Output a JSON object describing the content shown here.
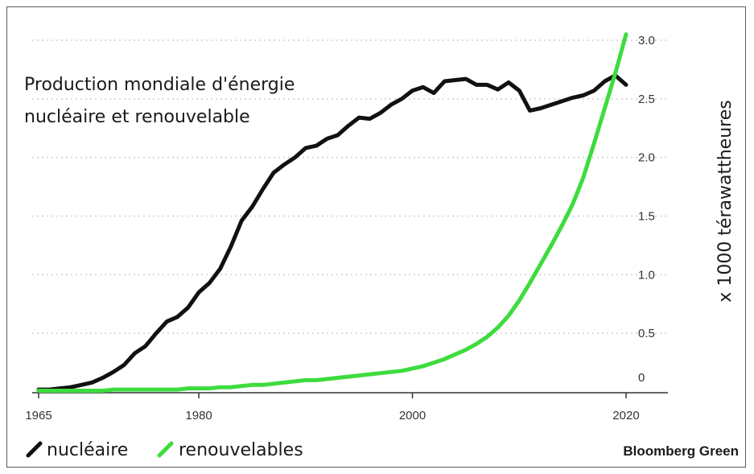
{
  "chart_data": {
    "type": "line",
    "title_lines": [
      "Production mondiale d'énergie",
      "nucléaire et renouvelable"
    ],
    "xlabel": "",
    "ylabel": "x 1000 térawattheures",
    "xlim": [
      1965,
      2020
    ],
    "ylim": [
      0,
      3.0
    ],
    "x_ticks": [
      "1965",
      "1980",
      "2000",
      "2020"
    ],
    "y_ticks": [
      "3.0",
      "2.5",
      "2.0",
      "1.5",
      "1.0",
      "0.5",
      "0"
    ],
    "grid": "horizontal dotted",
    "legend_placement": "bottom-left",
    "source": "Bloomberg Green",
    "colors": {
      "nucleaire": "#111111",
      "renouvelables": "#3ddc3d",
      "grid": "#cfcfcf",
      "axis": "#333333"
    },
    "x": [
      1965,
      1966,
      1967,
      1968,
      1969,
      1970,
      1971,
      1972,
      1973,
      1974,
      1975,
      1976,
      1977,
      1978,
      1979,
      1980,
      1981,
      1982,
      1983,
      1984,
      1985,
      1986,
      1987,
      1988,
      1989,
      1990,
      1991,
      1992,
      1993,
      1994,
      1995,
      1996,
      1997,
      1998,
      1999,
      2000,
      2001,
      2002,
      2003,
      2004,
      2005,
      2006,
      2007,
      2008,
      2009,
      2010,
      2011,
      2012,
      2013,
      2014,
      2015,
      2016,
      2017,
      2018,
      2019,
      2020
    ],
    "series": [
      {
        "name": "nucléaire",
        "values": [
          0.02,
          0.02,
          0.03,
          0.04,
          0.06,
          0.08,
          0.12,
          0.17,
          0.23,
          0.33,
          0.39,
          0.5,
          0.6,
          0.64,
          0.72,
          0.85,
          0.93,
          1.05,
          1.24,
          1.46,
          1.58,
          1.73,
          1.87,
          1.94,
          2.0,
          2.08,
          2.1,
          2.16,
          2.19,
          2.27,
          2.34,
          2.33,
          2.38,
          2.45,
          2.5,
          2.57,
          2.6,
          2.55,
          2.65,
          2.66,
          2.67,
          2.62,
          2.62,
          2.58,
          2.64,
          2.57,
          2.4,
          2.42,
          2.45,
          2.48,
          2.51,
          2.53,
          2.57,
          2.65,
          2.7,
          2.62
        ]
      },
      {
        "name": "renouvelables",
        "values": [
          0.01,
          0.01,
          0.01,
          0.01,
          0.01,
          0.01,
          0.01,
          0.02,
          0.02,
          0.02,
          0.02,
          0.02,
          0.02,
          0.02,
          0.03,
          0.03,
          0.03,
          0.04,
          0.04,
          0.05,
          0.06,
          0.06,
          0.07,
          0.08,
          0.09,
          0.1,
          0.1,
          0.11,
          0.12,
          0.13,
          0.14,
          0.15,
          0.16,
          0.17,
          0.18,
          0.2,
          0.22,
          0.25,
          0.28,
          0.32,
          0.36,
          0.41,
          0.47,
          0.55,
          0.65,
          0.78,
          0.93,
          1.09,
          1.25,
          1.42,
          1.6,
          1.83,
          2.12,
          2.42,
          2.72,
          3.05
        ]
      }
    ]
  }
}
